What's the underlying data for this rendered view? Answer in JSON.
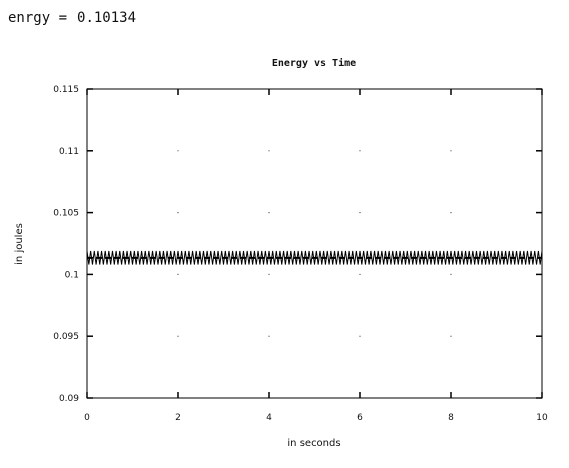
{
  "console": {
    "variable": "enrgy =",
    "value": "0.10134"
  },
  "chart_data": {
    "type": "line",
    "title": "Energy vs Time",
    "xlabel": "in seconds",
    "ylabel": "in joules",
    "xlim": [
      0,
      10
    ],
    "ylim": [
      0.09,
      0.115
    ],
    "xticks": [
      0,
      2,
      4,
      6,
      8,
      10
    ],
    "xtick_labels": [
      "0",
      "2",
      "4",
      "6",
      "8",
      "10"
    ],
    "yticks": [
      0.09,
      0.095,
      0.1,
      0.105,
      0.11,
      0.115
    ],
    "ytick_labels": [
      "0.09",
      "0.095",
      "0.1",
      "0.105",
      "0.11",
      "0.115"
    ],
    "grid": "sparse dotted",
    "line_color": "#000000",
    "oscillation": {
      "center": 0.10134,
      "max": 0.1019,
      "min": 0.1008,
      "t_start": 0,
      "t_end": 10,
      "samples_per_second": 25
    }
  }
}
